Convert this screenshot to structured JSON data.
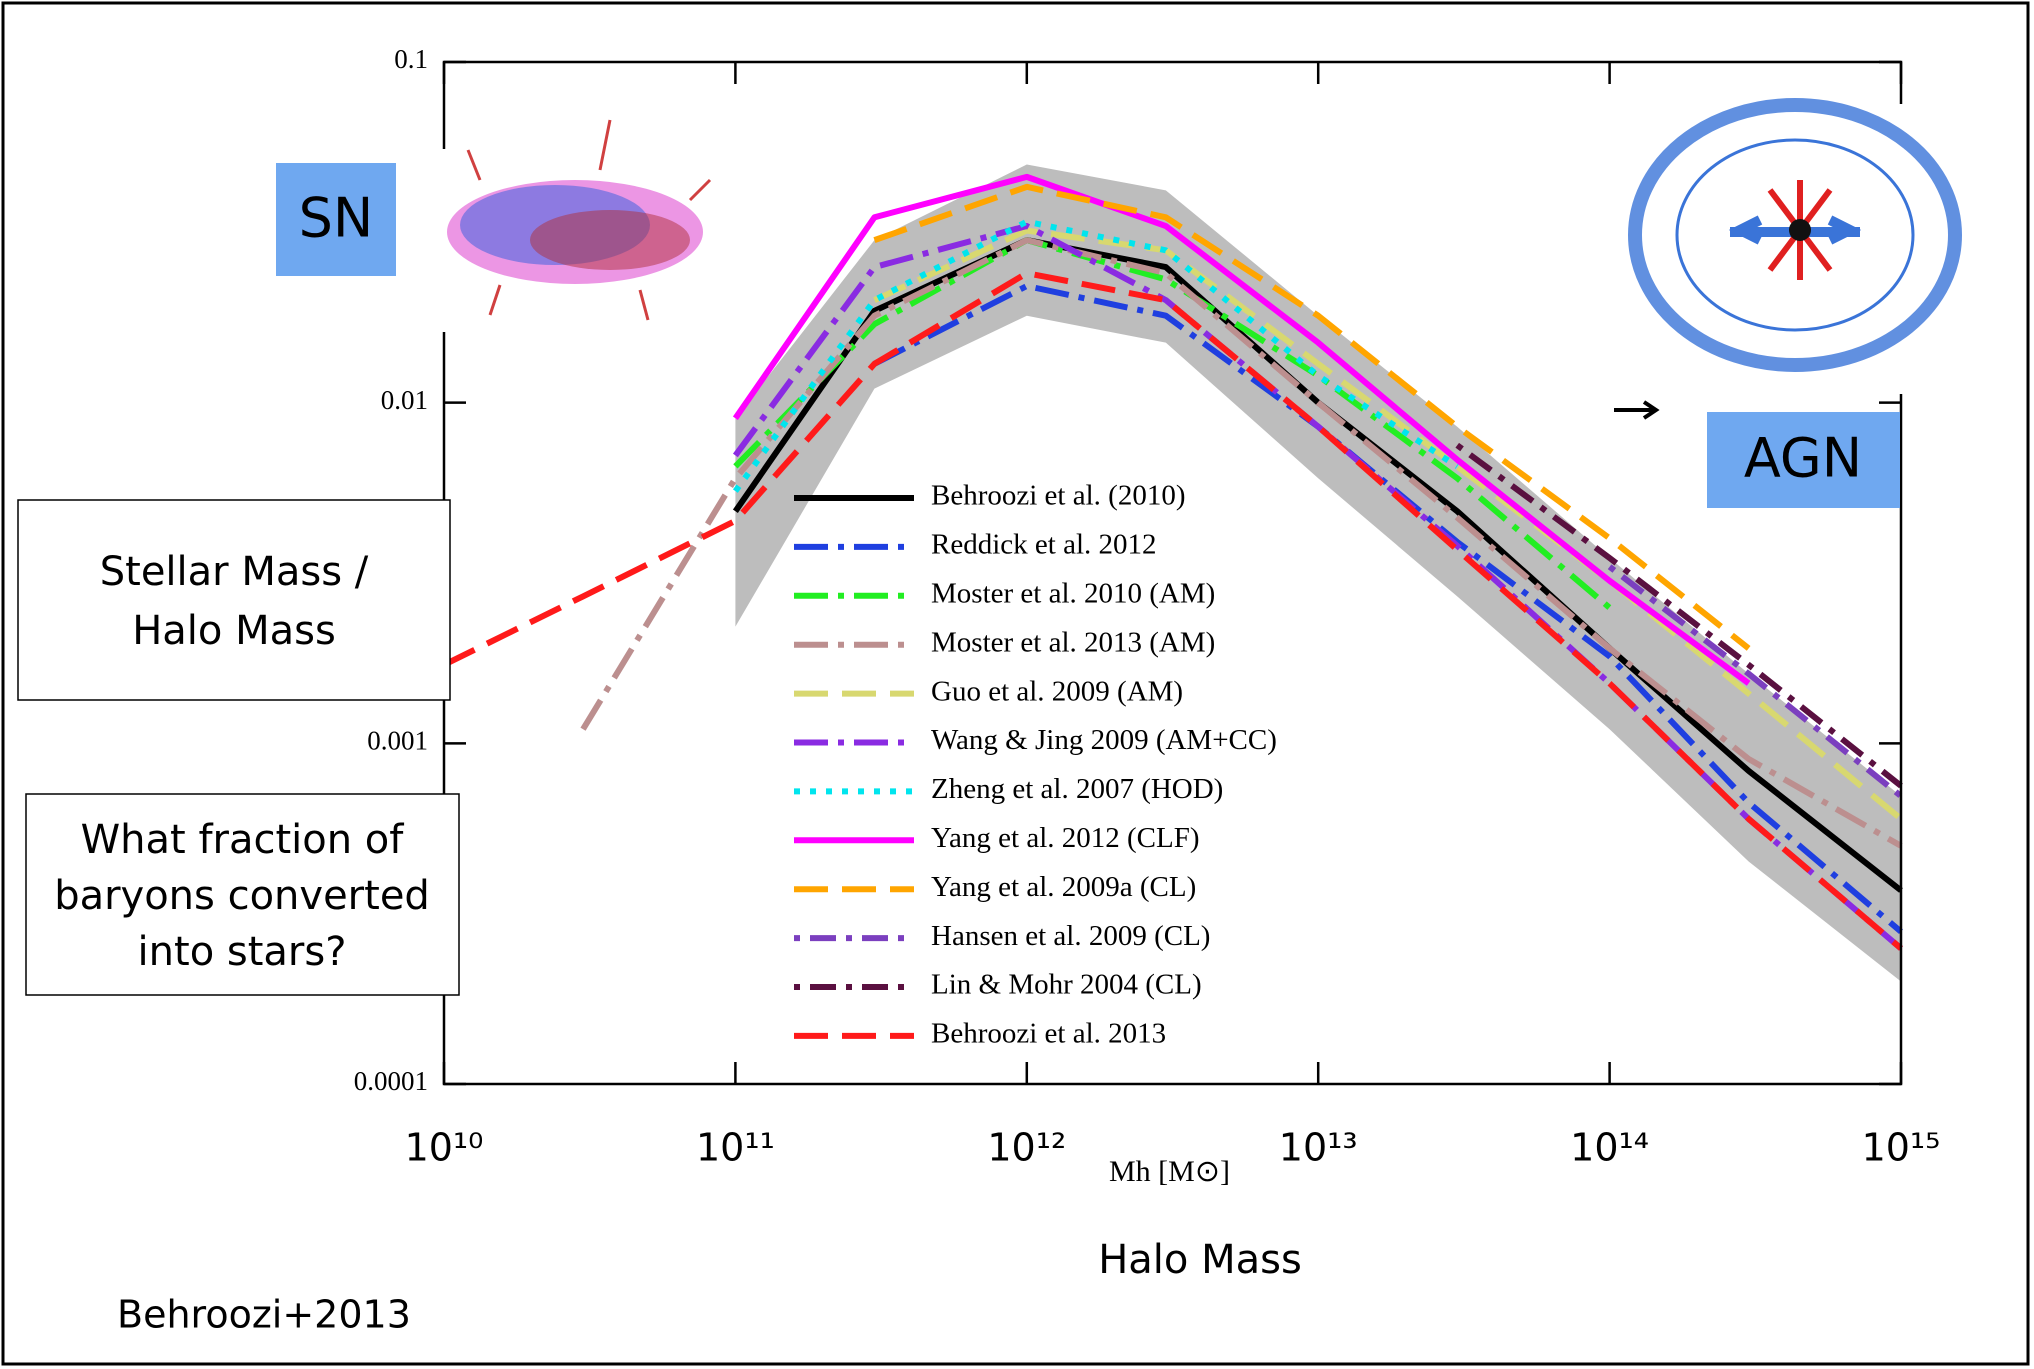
{
  "chart_data": {
    "type": "line",
    "x_label": "Mh [M⊙]",
    "x": [
      10000000000,
      30000000000,
      100000000000,
      300000000000,
      1000000000000,
      3000000000000,
      10000000000000,
      30000000000000,
      100000000000000,
      300000000000000,
      1000000000000000
    ],
    "xlim": [
      10000000000,
      1000000000000000
    ],
    "ylim": [
      0.0001,
      0.1
    ],
    "log_x": true,
    "log_y": true,
    "xticks": [
      {
        "value": 10000000000,
        "label": "10¹⁰"
      },
      {
        "value": 100000000000,
        "label": "10¹¹"
      },
      {
        "value": 1000000000000,
        "label": "10¹²"
      },
      {
        "value": 10000000000000,
        "label": "10¹³"
      },
      {
        "value": 100000000000000,
        "label": "10¹⁴"
      },
      {
        "value": 1000000000000000,
        "label": "10¹⁵"
      }
    ],
    "yticks": [
      0.1,
      0.01,
      0.001,
      0.0001
    ],
    "band": {
      "color": "#bdbdbd",
      "lower": [
        null,
        null,
        0.0022,
        0.011,
        0.018,
        0.015,
        0.006,
        0.0027,
        0.0011,
        0.00045,
        0.0002
      ],
      "upper": [
        null,
        null,
        0.009,
        0.03,
        0.05,
        0.042,
        0.018,
        0.0085,
        0.0035,
        0.0016,
        0.0007
      ]
    },
    "series": [
      {
        "name": "Behroozi et al. (2010)",
        "color": "#000000",
        "dash": "solid",
        "values": [
          null,
          null,
          0.0048,
          0.0186,
          0.03,
          0.025,
          0.01,
          0.0048,
          0.0019,
          0.00083,
          0.00037
        ]
      },
      {
        "name": "Reddick et al. 2012",
        "color": "#1f3fe0",
        "dash": "dash-dot",
        "values": [
          null,
          null,
          null,
          0.013,
          0.022,
          0.018,
          0.0085,
          0.0039,
          0.0018,
          0.00067,
          0.00028
        ]
      },
      {
        "name": "Moster et al. 2010 (AM)",
        "color": "#22ee22",
        "dash": "dash-dot",
        "values": [
          null,
          null,
          0.0065,
          0.017,
          0.03,
          0.023,
          0.012,
          0.006,
          0.0025,
          null,
          null
        ]
      },
      {
        "name": "Moster et al. 2013 (AM)",
        "color": "#bc8f8f",
        "dash": "dash-dot",
        "values": [
          null,
          0.0011,
          0.006,
          0.018,
          0.03,
          0.024,
          0.01,
          0.0046,
          0.0019,
          0.0009,
          0.0005
        ]
      },
      {
        "name": "Guo et al. 2009 (AM)",
        "color": "#d8d870",
        "dash": "dash",
        "values": [
          null,
          null,
          null,
          0.02,
          0.032,
          0.028,
          0.013,
          0.0065,
          0.003,
          0.0014,
          0.0006
        ]
      },
      {
        "name": "Wang & Jing 2009 (AM+CC)",
        "color": "#8a2be2",
        "dash": "dash-dot",
        "values": [
          null,
          null,
          0.007,
          0.025,
          0.033,
          0.02,
          0.0085,
          0.0038,
          0.0015,
          0.0006,
          0.00025
        ]
      },
      {
        "name": "Zheng et al. 2007 (HOD)",
        "color": "#00e5ee",
        "dash": "dot",
        "values": [
          null,
          null,
          0.0055,
          0.02,
          0.034,
          0.028,
          0.012,
          0.0065,
          null,
          null,
          null
        ]
      },
      {
        "name": "Yang et al. 2012 (CLF)",
        "color": "#ff00ff",
        "dash": "solid",
        "values": [
          null,
          null,
          0.009,
          0.035,
          0.046,
          0.033,
          0.015,
          0.0068,
          0.003,
          0.0015,
          null
        ]
      },
      {
        "name": "Yang et al. 2009a (CL)",
        "color": "#ffa500",
        "dash": "dash",
        "values": [
          null,
          null,
          null,
          0.03,
          0.043,
          0.035,
          0.018,
          0.0085,
          0.004,
          0.0019,
          null
        ]
      },
      {
        "name": "Hansen et al. 2009 (CL)",
        "color": "#7b3fbf",
        "dash": "dot-dash",
        "values": [
          null,
          null,
          null,
          null,
          null,
          null,
          null,
          null,
          0.0033,
          0.0016,
          0.0007
        ]
      },
      {
        "name": "Lin & Mohr 2004 (CL)",
        "color": "#5a1040",
        "dash": "dot-dash",
        "values": [
          null,
          null,
          null,
          null,
          null,
          null,
          null,
          0.0075,
          0.0035,
          0.0017,
          0.00075
        ]
      },
      {
        "name": "Behroozi et al. 2013",
        "color": "#ff1a1a",
        "dash": "dash",
        "values": [
          0.0017,
          0.0027,
          0.0045,
          0.013,
          0.024,
          0.02,
          0.0085,
          0.0037,
          0.0015,
          0.0006,
          0.00025
        ]
      }
    ],
    "legend": "center",
    "annotations": {
      "y_axis_box": [
        "Stellar Mass /",
        "Halo Mass"
      ],
      "question_box": [
        "What fraction of",
        "baryons converted",
        "into stars?"
      ],
      "halo_mass": "Halo Mass",
      "credit": "Behroozi+2013",
      "sn": "SN",
      "agn": "AGN"
    }
  }
}
